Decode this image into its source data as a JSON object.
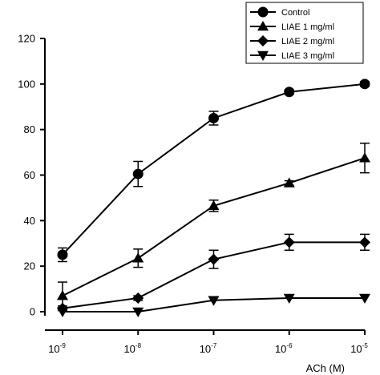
{
  "chart_data": {
    "type": "line",
    "xlabel": "ACh (M)",
    "ylabel": "",
    "title": "",
    "x": [
      -9,
      -8,
      -7,
      -6,
      -5
    ],
    "x_tick_labels": [
      {
        "base": "10",
        "exp": "-9"
      },
      {
        "base": "10",
        "exp": "-8"
      },
      {
        "base": "10",
        "exp": "-7"
      },
      {
        "base": "10",
        "exp": "-6"
      },
      {
        "base": "10",
        "exp": "-5"
      }
    ],
    "x_scale": "log",
    "ylim": [
      0,
      120
    ],
    "y_ticks": [
      0,
      20,
      40,
      60,
      80,
      100,
      120
    ],
    "grid": false,
    "legend_position": "top-right",
    "series": [
      {
        "name": "Control",
        "marker": "circle",
        "values": [
          25,
          60.5,
          85,
          96.5,
          100
        ],
        "errors": [
          3,
          5.5,
          3,
          1,
          1
        ]
      },
      {
        "name": "LIAE 1 mg/ml",
        "marker": "triangle-up",
        "values": [
          7,
          23.5,
          46.5,
          56.5,
          67.5
        ],
        "errors": [
          6,
          4,
          2.5,
          1,
          6.5
        ]
      },
      {
        "name": "LIAE 2 mg/ml",
        "marker": "diamond",
        "values": [
          1.5,
          6,
          23,
          30.5,
          30.5
        ],
        "errors": [
          1,
          1,
          4,
          3.5,
          3.5
        ]
      },
      {
        "name": "LIAE 3 mg/ml",
        "marker": "triangle-down",
        "values": [
          0,
          0,
          5,
          6,
          6
        ],
        "errors": [
          0,
          0,
          0.5,
          0.5,
          0.5
        ]
      }
    ]
  }
}
